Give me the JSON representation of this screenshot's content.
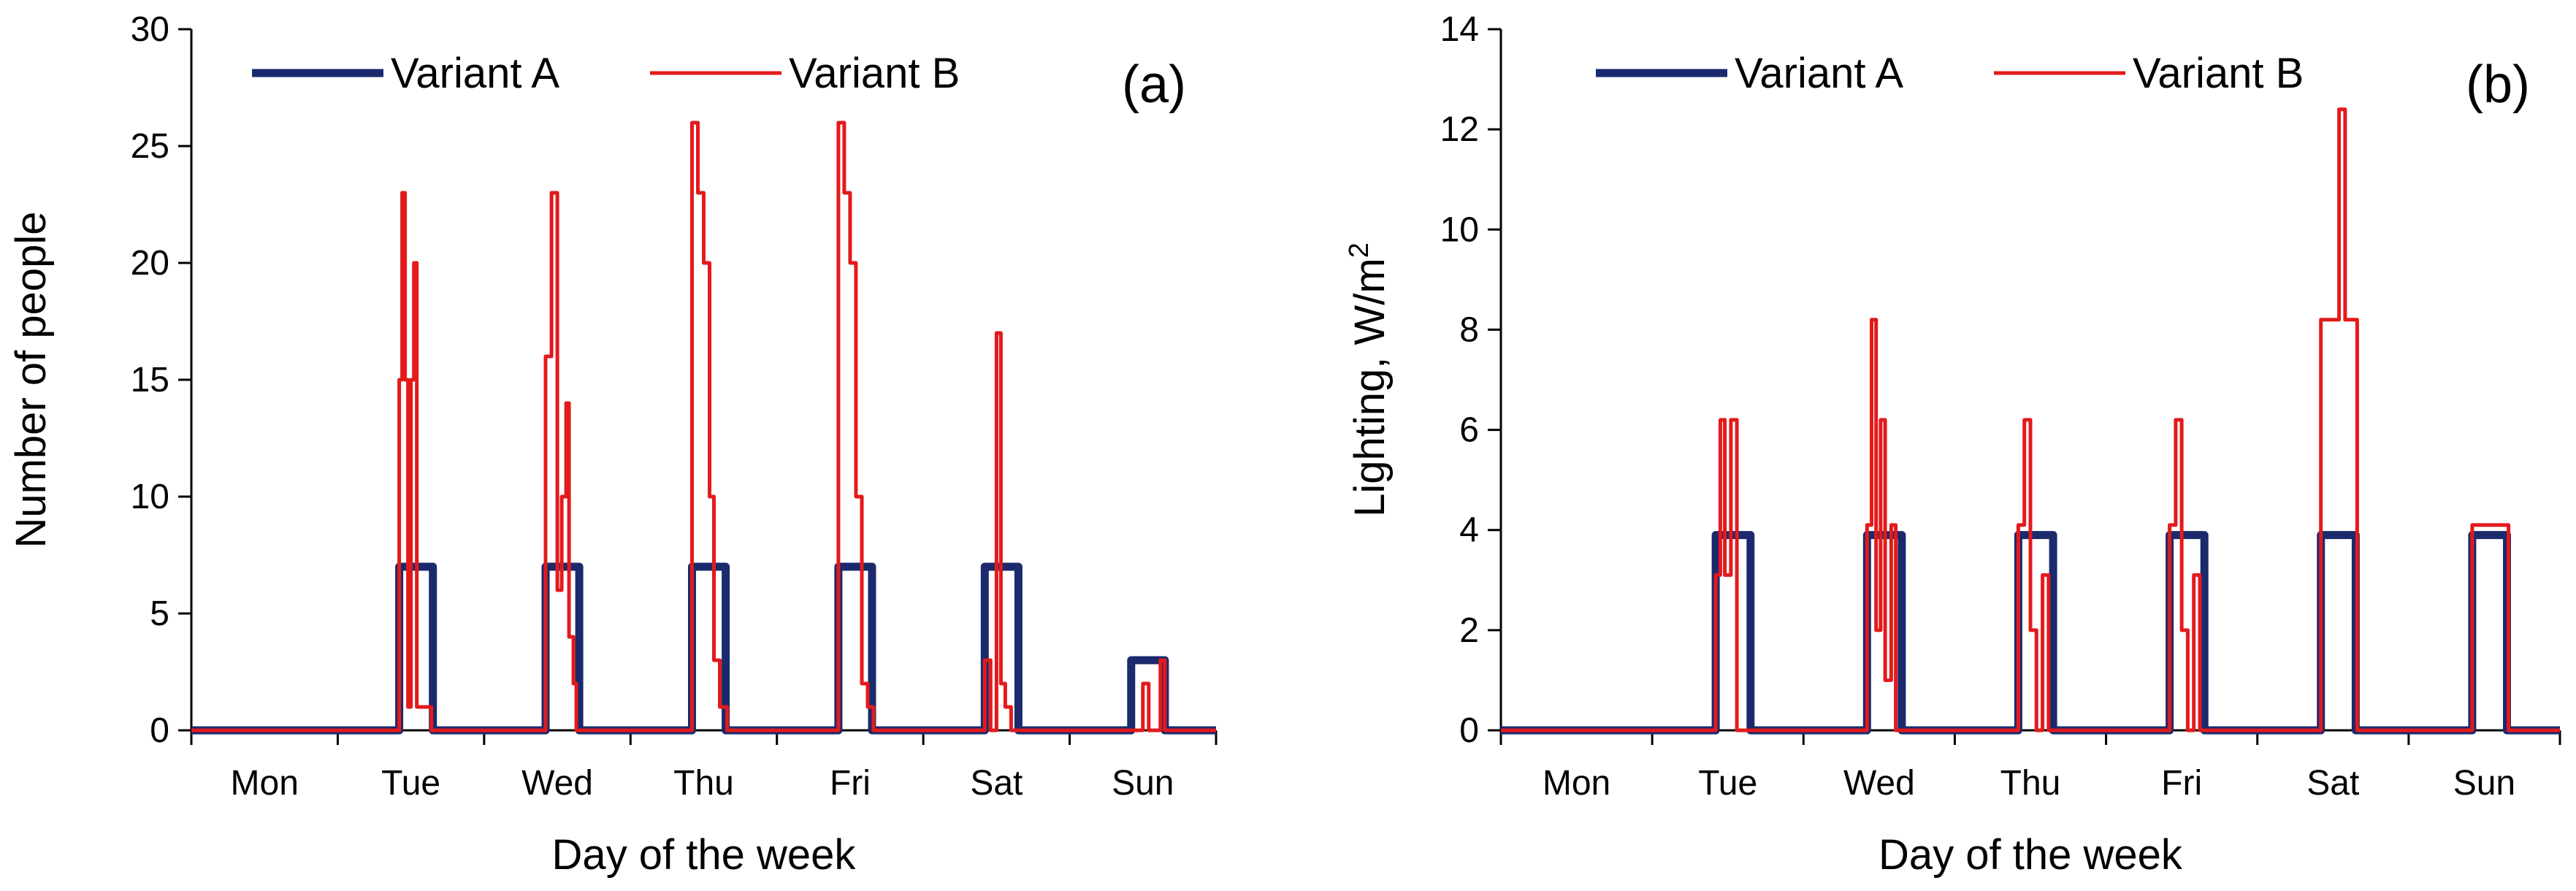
{
  "figure": {
    "series_names": [
      "Variant A",
      "Variant B"
    ],
    "series_colors": {
      "Variant A": "#1a2a6c",
      "Variant B": "#e31a1c"
    }
  },
  "chart_data": [
    {
      "type": "line",
      "panel_label": "(a)",
      "xlabel": "Day of the week",
      "ylabel": "Number of people",
      "categories": [
        "Mon",
        "Tue",
        "Wed",
        "Thu",
        "Fri",
        "Sat",
        "Sun"
      ],
      "xlim": [
        0,
        7
      ],
      "ylim": [
        0,
        30
      ],
      "yticks": [
        "0",
        "5",
        "10",
        "15",
        "20",
        "25",
        "30"
      ],
      "grid": false,
      "legend_position": "top",
      "series": [
        {
          "name": "Variant A",
          "color": "#1a2a6c",
          "x": [
            0,
            1.42,
            1.42,
            1.65,
            1.65,
            2.42,
            2.42,
            2.65,
            2.65,
            3.42,
            3.42,
            3.65,
            3.65,
            4.42,
            4.42,
            4.65,
            4.65,
            5.42,
            5.42,
            5.65,
            5.65,
            6.42,
            6.42,
            6.65,
            6.65,
            7
          ],
          "y": [
            0,
            0,
            7,
            7,
            0,
            0,
            7,
            7,
            0,
            0,
            7,
            7,
            0,
            0,
            7,
            7,
            0,
            0,
            7,
            7,
            0,
            0,
            3,
            3,
            0,
            0
          ]
        },
        {
          "name": "Variant B",
          "color": "#e31a1c",
          "x": [
            0,
            1.42,
            1.42,
            1.44,
            1.44,
            1.46,
            1.46,
            1.48,
            1.48,
            1.5,
            1.5,
            1.52,
            1.52,
            1.54,
            1.54,
            1.56,
            1.56,
            1.6,
            1.6,
            1.64,
            1.64,
            2.42,
            2.42,
            2.46,
            2.46,
            2.5,
            2.5,
            2.53,
            2.53,
            2.56,
            2.56,
            2.58,
            2.58,
            2.61,
            2.61,
            2.63,
            2.63,
            2.66,
            2.66,
            2.7,
            2.7,
            3.42,
            3.42,
            3.46,
            3.46,
            3.5,
            3.5,
            3.54,
            3.54,
            3.57,
            3.57,
            3.61,
            3.61,
            3.66,
            3.66,
            3.72,
            3.72,
            4.42,
            4.42,
            4.46,
            4.46,
            4.5,
            4.5,
            4.54,
            4.54,
            4.58,
            4.58,
            4.62,
            4.62,
            4.66,
            4.66,
            5.42,
            5.42,
            5.46,
            5.46,
            5.5,
            5.5,
            5.53,
            5.53,
            5.56,
            5.56,
            5.6,
            5.6,
            6.5,
            6.5,
            6.54,
            6.54,
            6.62,
            6.62,
            6.65,
            6.65,
            7
          ],
          "y": [
            0,
            0,
            15,
            15,
            23,
            23,
            15,
            15,
            1,
            1,
            15,
            15,
            20,
            20,
            1,
            1,
            1,
            1,
            1,
            1,
            0,
            0,
            16,
            16,
            23,
            23,
            6,
            6,
            10,
            10,
            14,
            14,
            4,
            4,
            2,
            2,
            0,
            0,
            0,
            0,
            0,
            0,
            26,
            26,
            23,
            23,
            20,
            20,
            10,
            10,
            3,
            3,
            1,
            1,
            0,
            0,
            0,
            0,
            26,
            26,
            23,
            23,
            20,
            20,
            10,
            10,
            2,
            2,
            1,
            1,
            0,
            0,
            3,
            3,
            0,
            0,
            17,
            17,
            2,
            2,
            1,
            1,
            0,
            0,
            2,
            2,
            0,
            0,
            3,
            3,
            0,
            0
          ]
        }
      ]
    },
    {
      "type": "line",
      "panel_label": "(b)",
      "xlabel": "Day of the week",
      "ylabel": "Lighting, W/m",
      "ylabel_superscript": "2",
      "categories": [
        "Mon",
        "Tue",
        "Wed",
        "Thu",
        "Fri",
        "Sat",
        "Sun"
      ],
      "xlim": [
        0,
        7
      ],
      "ylim": [
        0,
        14
      ],
      "yticks": [
        "0",
        "2",
        "4",
        "6",
        "8",
        "10",
        "12",
        "14"
      ],
      "grid": false,
      "legend_position": "top",
      "series": [
        {
          "name": "Variant A",
          "color": "#1a2a6c",
          "x": [
            0,
            1.42,
            1.42,
            1.65,
            1.65,
            2.42,
            2.42,
            2.65,
            2.65,
            3.42,
            3.42,
            3.65,
            3.65,
            4.42,
            4.42,
            4.65,
            4.65,
            5.42,
            5.42,
            5.65,
            5.65,
            6.42,
            6.42,
            6.65,
            6.65,
            7
          ],
          "y": [
            0,
            0,
            3.9,
            3.9,
            0,
            0,
            3.9,
            3.9,
            0,
            0,
            3.9,
            3.9,
            0,
            0,
            3.9,
            3.9,
            0,
            0,
            3.9,
            3.9,
            0,
            0,
            3.9,
            3.9,
            0,
            0
          ]
        },
        {
          "name": "Variant B",
          "color": "#e31a1c",
          "x": [
            0,
            1.42,
            1.42,
            1.45,
            1.45,
            1.48,
            1.48,
            1.52,
            1.52,
            1.56,
            1.56,
            2.42,
            2.42,
            2.45,
            2.45,
            2.48,
            2.48,
            2.51,
            2.51,
            2.54,
            2.54,
            2.58,
            2.58,
            2.61,
            2.61,
            2.64,
            2.64,
            3.42,
            3.42,
            3.46,
            3.46,
            3.5,
            3.5,
            3.54,
            3.54,
            3.58,
            3.58,
            3.62,
            3.62,
            3.64,
            3.64,
            4.42,
            4.42,
            4.46,
            4.46,
            4.5,
            4.5,
            4.54,
            4.54,
            4.58,
            4.58,
            4.62,
            4.62,
            5.42,
            5.42,
            5.54,
            5.54,
            5.58,
            5.58,
            5.66,
            5.66,
            6.42,
            6.42,
            6.66,
            6.66,
            7
          ],
          "y": [
            0,
            0,
            3.1,
            3.1,
            6.2,
            6.2,
            3.1,
            3.1,
            6.2,
            6.2,
            0,
            0,
            4.1,
            4.1,
            8.2,
            8.2,
            2,
            2,
            6.2,
            6.2,
            1,
            1,
            4.1,
            4.1,
            0,
            0,
            0,
            0,
            4.1,
            4.1,
            6.2,
            6.2,
            2,
            2,
            0,
            0,
            3.1,
            3.1,
            0,
            0,
            0,
            0,
            4.1,
            4.1,
            6.2,
            6.2,
            2,
            2,
            0,
            0,
            3.1,
            3.1,
            0,
            0,
            8.2,
            8.2,
            12.4,
            12.4,
            8.2,
            8.2,
            0,
            0,
            4.1,
            4.1,
            0,
            0
          ]
        }
      ]
    }
  ]
}
